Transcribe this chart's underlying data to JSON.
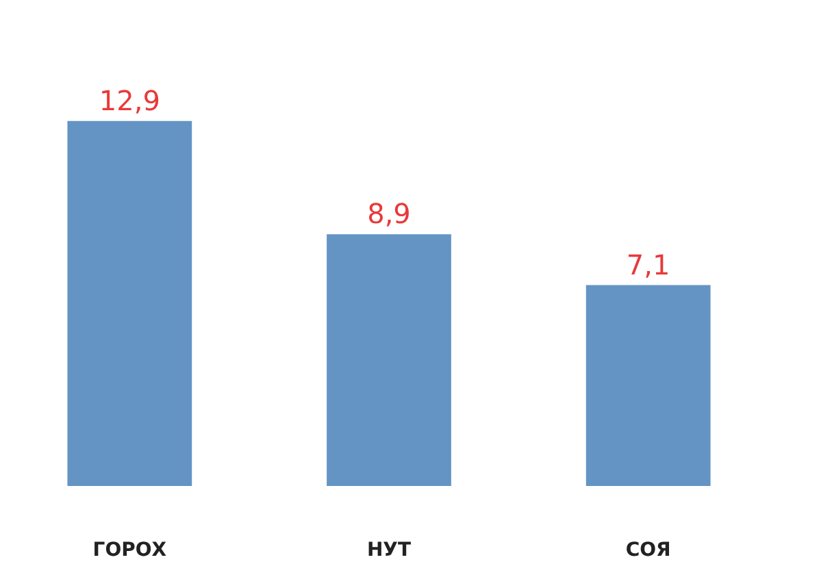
{
  "chart_data": {
    "type": "bar",
    "categories": [
      "ГОРОХ",
      "НУТ",
      "СОЯ"
    ],
    "values": [
      12.9,
      8.9,
      7.1
    ],
    "value_labels": [
      "12,9",
      "8,9",
      "7,1"
    ],
    "color": "#6394c4"
  }
}
